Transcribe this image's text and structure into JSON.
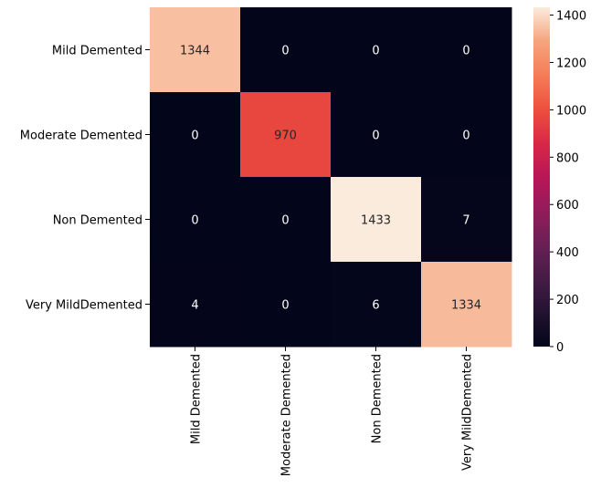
{
  "chart_data": {
    "type": "heatmap",
    "title": "",
    "xlabel": "",
    "ylabel": "",
    "row_labels": [
      "Mild Demented",
      "Moderate Demented",
      "Non Demented",
      "Very MildDemented"
    ],
    "col_labels": [
      "Mild Demented",
      "Moderate Demented",
      "Non Demented",
      "Very MildDemented"
    ],
    "values": [
      [
        1344,
        0,
        0,
        0
      ],
      [
        0,
        970,
        0,
        0
      ],
      [
        0,
        0,
        1433,
        7
      ],
      [
        4,
        0,
        6,
        1334
      ]
    ],
    "annotations": true,
    "colormap": "rocket",
    "colorbar": {
      "range": [
        0,
        1433
      ],
      "ticks": [
        0,
        200,
        400,
        600,
        800,
        1000,
        1200,
        1400
      ],
      "tick_labels": [
        "0",
        "200",
        "400",
        "600",
        "800",
        "1000",
        "1200",
        "1400"
      ]
    },
    "grid": false,
    "legend": "colorbar-right"
  }
}
